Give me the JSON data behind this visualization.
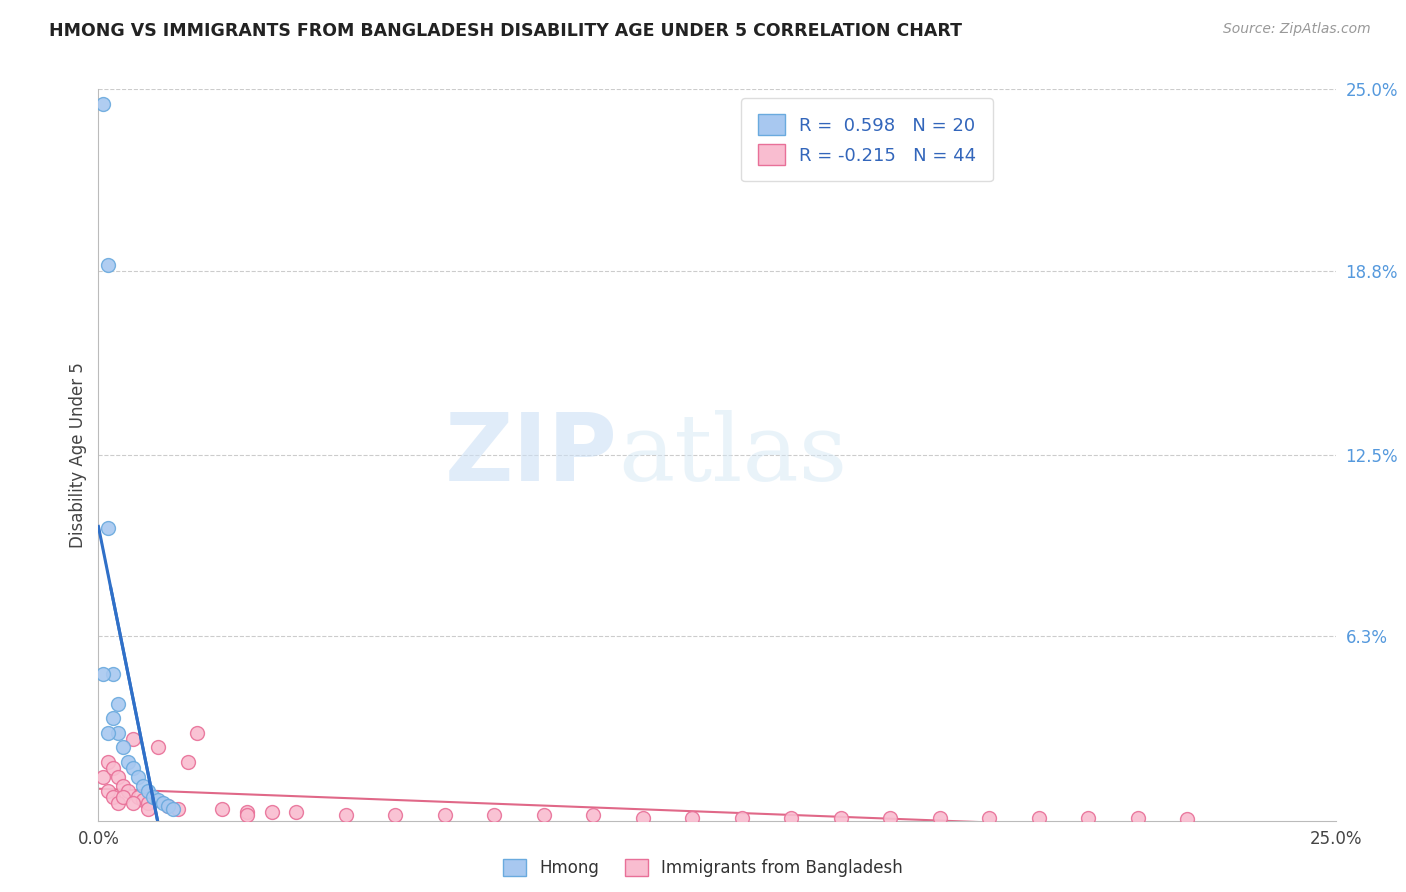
{
  "title": "HMONG VS IMMIGRANTS FROM BANGLADESH DISABILITY AGE UNDER 5 CORRELATION CHART",
  "source": "Source: ZipAtlas.com",
  "ylabel": "Disability Age Under 5",
  "x_min": 0.0,
  "x_max": 0.25,
  "y_min": 0.0,
  "y_max": 0.25,
  "y_tick_right": [
    0.0,
    0.063,
    0.125,
    0.188,
    0.25
  ],
  "y_tick_right_labels": [
    "",
    "6.3%",
    "12.5%",
    "18.8%",
    "25.0%"
  ],
  "grid_color": "#cccccc",
  "background_color": "#ffffff",
  "hmong_color": "#a8c8f0",
  "hmong_edge_color": "#6aaade",
  "bangladesh_color": "#f9bdd0",
  "bangladesh_edge_color": "#e87098",
  "hmong_R": 0.598,
  "hmong_N": 20,
  "bangladesh_R": -0.215,
  "bangladesh_N": 44,
  "hmong_line_color": "#3070c8",
  "bangladesh_line_color": "#e06888",
  "right_axis_color": "#5599dd",
  "watermark_zip": "ZIP",
  "watermark_atlas": "atlas",
  "hmong_x": [
    0.001,
    0.002,
    0.003,
    0.004,
    0.005,
    0.006,
    0.007,
    0.008,
    0.009,
    0.01,
    0.011,
    0.012,
    0.013,
    0.014,
    0.015,
    0.002,
    0.003,
    0.004,
    0.001,
    0.002
  ],
  "hmong_y": [
    0.245,
    0.19,
    0.035,
    0.03,
    0.025,
    0.02,
    0.018,
    0.015,
    0.012,
    0.01,
    0.008,
    0.007,
    0.006,
    0.005,
    0.004,
    0.1,
    0.05,
    0.04,
    0.05,
    0.03
  ],
  "bangladesh_x": [
    0.001,
    0.002,
    0.003,
    0.004,
    0.005,
    0.006,
    0.007,
    0.008,
    0.009,
    0.01,
    0.012,
    0.014,
    0.016,
    0.018,
    0.02,
    0.025,
    0.03,
    0.035,
    0.04,
    0.05,
    0.06,
    0.07,
    0.08,
    0.09,
    0.1,
    0.11,
    0.12,
    0.13,
    0.14,
    0.15,
    0.16,
    0.17,
    0.18,
    0.19,
    0.2,
    0.21,
    0.22,
    0.002,
    0.003,
    0.004,
    0.005,
    0.007,
    0.01,
    0.03
  ],
  "bangladesh_y": [
    0.015,
    0.02,
    0.018,
    0.015,
    0.012,
    0.01,
    0.028,
    0.008,
    0.007,
    0.006,
    0.025,
    0.005,
    0.004,
    0.02,
    0.03,
    0.004,
    0.003,
    0.003,
    0.003,
    0.002,
    0.002,
    0.002,
    0.002,
    0.002,
    0.002,
    0.001,
    0.001,
    0.001,
    0.001,
    0.001,
    0.001,
    0.001,
    0.001,
    0.001,
    0.001,
    0.001,
    0.0005,
    0.01,
    0.008,
    0.006,
    0.008,
    0.006,
    0.004,
    0.002
  ]
}
